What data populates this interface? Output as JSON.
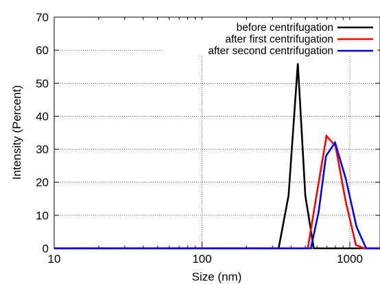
{
  "chart_data": {
    "type": "line",
    "xlabel": "Size (nm)",
    "ylabel": "Intensity (Percent)",
    "xscale": "log",
    "xlim": [
      10,
      1600
    ],
    "ylim": [
      0,
      70
    ],
    "xticks": [
      10,
      100,
      1000
    ],
    "xtick_labels": [
      "10",
      "100",
      "1000"
    ],
    "yticks": [
      0,
      10,
      20,
      30,
      40,
      50,
      60,
      70
    ],
    "ytick_labels": [
      "0",
      "10",
      "20",
      "30",
      "40",
      "50",
      "60",
      "70"
    ],
    "grid": true,
    "legend_position": "top-right",
    "series": [
      {
        "name": "before centrifugation",
        "color": "#000000",
        "x": [
          10,
          330,
          385,
          445,
          500,
          570,
          1600
        ],
        "y": [
          0,
          0,
          16,
          56,
          16,
          0,
          0
        ]
      },
      {
        "name": "after first centrifugation",
        "color": "#ff0000",
        "x": [
          10,
          520,
          590,
          695,
          800,
          940,
          1100,
          1250,
          1600
        ],
        "y": [
          0,
          0,
          15,
          34,
          31,
          14,
          1,
          0,
          0
        ]
      },
      {
        "name": "after second centrifugation",
        "color": "#0000ff",
        "x": [
          10,
          545,
          615,
          690,
          795,
          940,
          1110,
          1290,
          1600
        ],
        "y": [
          0,
          0,
          11,
          28,
          32,
          21,
          6.5,
          0,
          0
        ]
      }
    ]
  }
}
